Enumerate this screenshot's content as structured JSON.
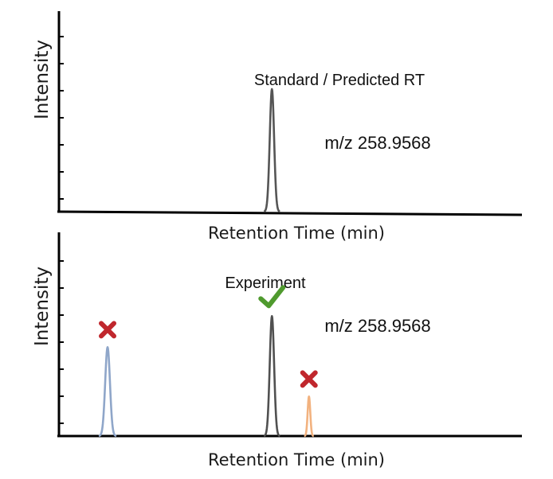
{
  "colors": {
    "standard": "#555555",
    "experiment": "#505050",
    "blue_peak": "#8fa6c9",
    "orange_peak": "#f2b27f",
    "check": "#4f9a2e",
    "cross": "#c0272d"
  },
  "top_panel": {
    "y_label": "Intensity",
    "x_label": "Retention Time (min)",
    "peak_label": "Standard / Predicted RT",
    "mz_label": "m/z 258.9568",
    "peaks": [
      {
        "id": "standard",
        "rt": 0.46,
        "height": 0.88,
        "color_key": "standard"
      }
    ]
  },
  "bottom_panel": {
    "y_label": "Intensity",
    "x_label": "Retention Time (min)",
    "peak_label": "Experiment",
    "mz_label": "m/z 258.9568",
    "peaks": [
      {
        "id": "blue",
        "rt": 0.105,
        "height": 0.63,
        "color_key": "blue_peak",
        "mark": "cross"
      },
      {
        "id": "experiment",
        "rt": 0.46,
        "height": 0.85,
        "color_key": "experiment",
        "mark": "check"
      },
      {
        "id": "orange",
        "rt": 0.54,
        "height": 0.28,
        "color_key": "orange_peak",
        "mark": "cross"
      }
    ]
  }
}
